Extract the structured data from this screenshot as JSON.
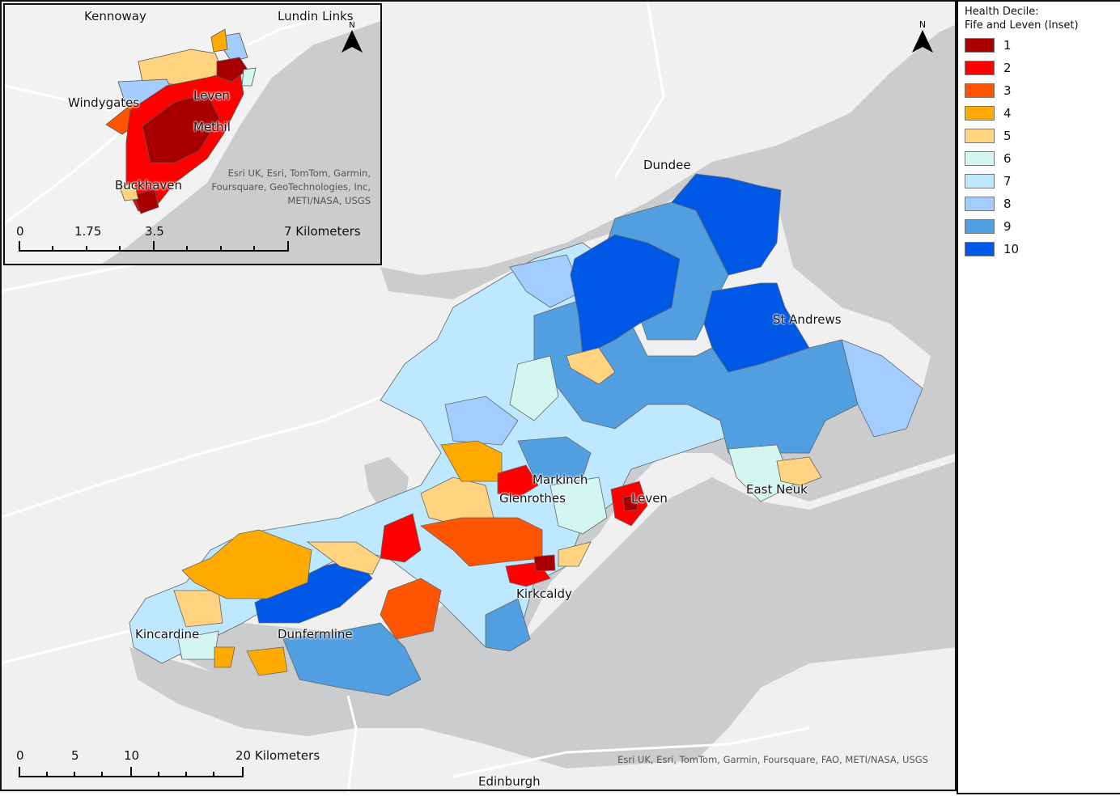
{
  "legend": {
    "title_line1": "Health Decile:",
    "title_line2": "Fife and Leven (Inset)",
    "items": [
      {
        "label": "1",
        "color": "#a80000"
      },
      {
        "label": "2",
        "color": "#ff0000"
      },
      {
        "label": "3",
        "color": "#ff5500"
      },
      {
        "label": "4",
        "color": "#ffaa00"
      },
      {
        "label": "5",
        "color": "#ffd37f"
      },
      {
        "label": "6",
        "color": "#d3f7f0"
      },
      {
        "label": "7",
        "color": "#bee8ff"
      },
      {
        "label": "8",
        "color": "#a3ccff"
      },
      {
        "label": "9",
        "color": "#519fe0"
      },
      {
        "label": "10",
        "color": "#0058e6"
      }
    ]
  },
  "main_map": {
    "places": [
      "Dundee",
      "St Andrews",
      "Markinch",
      "Glenrothes",
      "Leven",
      "East Neuk",
      "Kirkcaldy",
      "Kincardine",
      "Dunfermline",
      "Edinburgh"
    ],
    "scale": {
      "ticks": [
        "0",
        "5",
        "10",
        "20 Kilometers"
      ]
    },
    "north_label": "N",
    "attribution": "Esri UK, Esri, TomTom, Garmin, Foursquare, FAO, METI/NASA, USGS"
  },
  "inset_map": {
    "places": [
      "Kennoway",
      "Lundin Links",
      "Windygates",
      "Leven",
      "Methil",
      "Buckhaven"
    ],
    "scale": {
      "ticks": [
        "0",
        "1.75",
        "3.5",
        "7 Kilometers"
      ]
    },
    "north_label": "N",
    "attribution_lines": [
      "Esri UK, Esri, TomTom, Garmin,",
      "Foursquare, GeoTechnologies, Inc,",
      "METI/NASA, USGS"
    ]
  },
  "colors": {
    "land": "#f0f0f0",
    "water": "#cbcccd",
    "road": "#ffffff"
  }
}
